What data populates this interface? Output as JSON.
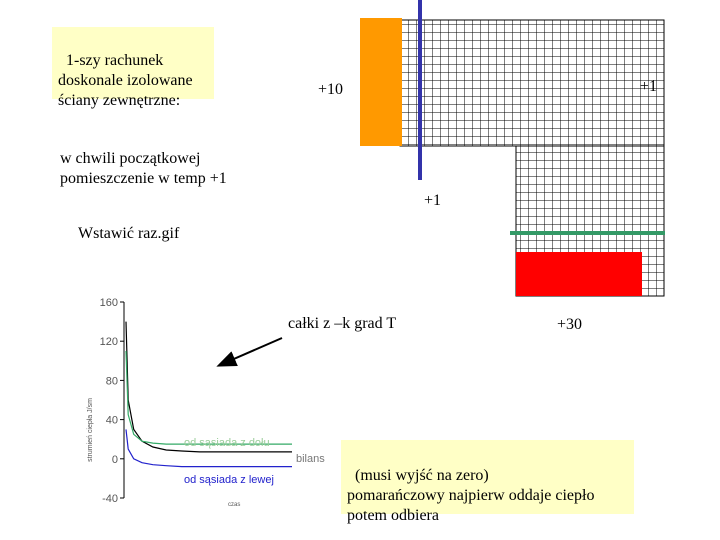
{
  "colors": {
    "orange": "#ff9900",
    "red": "#ff0000",
    "blue_line": "#3333aa",
    "green_line": "#339966",
    "note_bg": "#ffffc6",
    "curve_black": "#000000",
    "curve_green": "#33aa66",
    "curve_blue": "#2222cc",
    "label_green": "#99cc99",
    "label_blue": "#2222cc"
  },
  "labels": {
    "note_title": "1-szy rachunek\ndoskonale izolowane\nściany zewnętrzne:",
    "initial_state": "w chwili początkowej\npomieszczenie w temp +1",
    "insert_gif": "Wstawić raz.gif",
    "plus10": "+10",
    "plus1_top": "+1",
    "plus1_mid": "+1",
    "plus30": "+30",
    "integrals": "całki z –k grad T",
    "note_bottom": "(musi wyjść na zero)\npomarańczowy najpierw oddaje ciepło\npotem odbiera"
  },
  "chart_data": {
    "type": "line",
    "ylabel": "strumień ciepła J/sm",
    "xlabel": "czas",
    "ylim": [
      -40,
      160
    ],
    "yticks": [
      "160",
      "120",
      "80",
      "40",
      "0",
      "-40"
    ],
    "series_labels": {
      "green": "od sąsiada z dołu",
      "black": "bilans",
      "blue": "od sąsiada z lewej"
    },
    "series": [
      {
        "name": "bilans",
        "values": [
          140,
          60,
          30,
          18,
          12,
          9,
          8,
          7,
          7,
          7,
          7,
          7
        ]
      },
      {
        "name": "od sąsiada z dołu",
        "values": [
          110,
          45,
          25,
          18,
          16,
          15,
          15,
          15,
          15,
          15,
          15,
          15
        ]
      },
      {
        "name": "od sąsiada z lewej",
        "values": [
          30,
          10,
          0,
          -4,
          -6,
          -7,
          -8,
          -8,
          -8,
          -8,
          -8,
          -8
        ]
      }
    ]
  }
}
